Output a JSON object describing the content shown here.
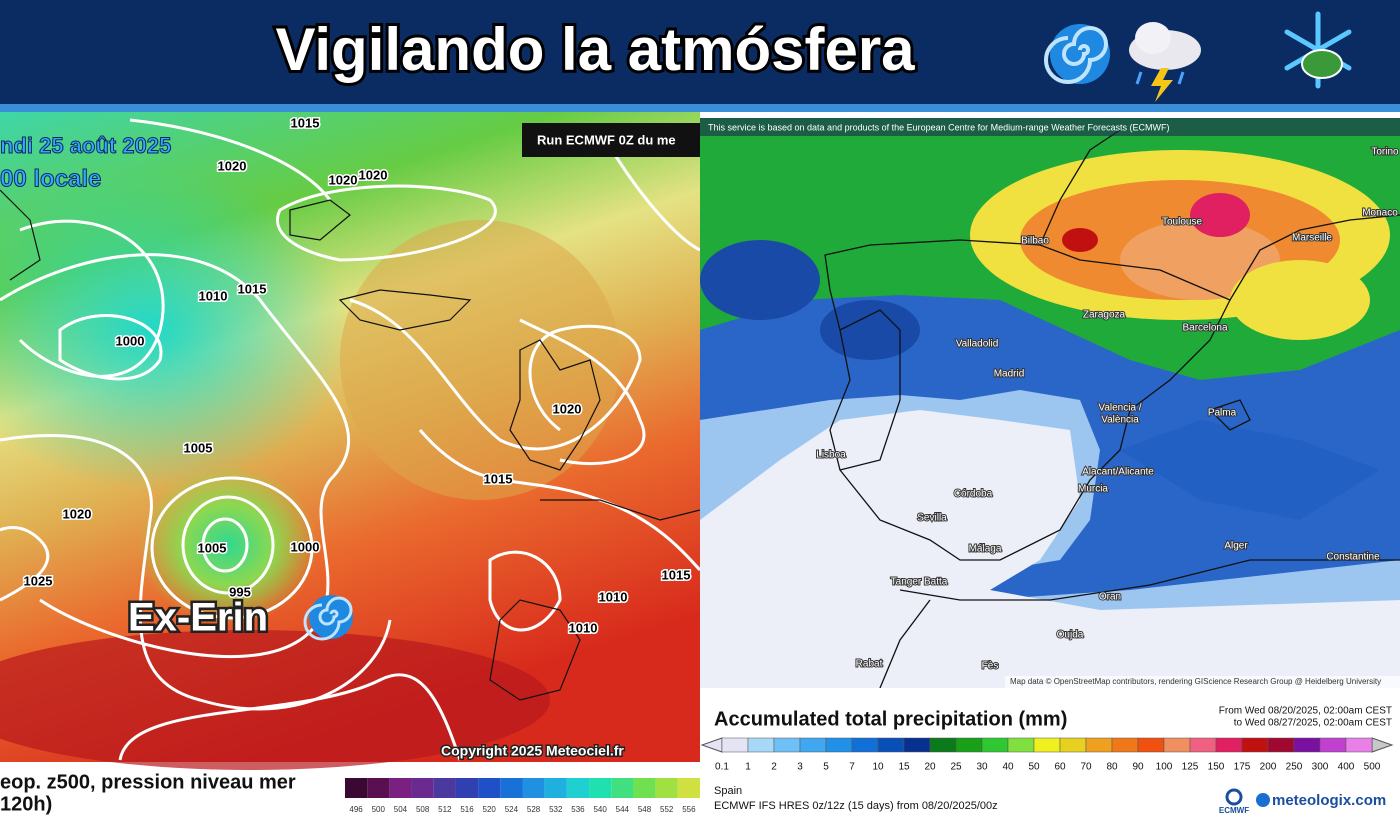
{
  "header": {
    "title": "Vigilando la atmósfera"
  },
  "left_map": {
    "date": "ndi 25 août 2025",
    "time": "00 locale",
    "run": "Run ECMWF 0Z du me",
    "isobar_labels": [
      "1015",
      "1020",
      "1020",
      "1020",
      "1010",
      "1015",
      "1000",
      "1020",
      "1005",
      "1015",
      "1020",
      "1000",
      "1005",
      "995",
      "1025",
      "1015",
      "1010",
      "1010"
    ],
    "storm_label": "Ex-Erin",
    "copyright": "Copyright 2025 Meteociel.fr",
    "caption": [
      "eop. z500, pression niveau mer",
      "120h)"
    ],
    "scale_labels": [
      "496",
      "500",
      "504",
      "508",
      "512",
      "516",
      "520",
      "524",
      "528",
      "532",
      "536",
      "540",
      "544",
      "548",
      "552",
      "556"
    ],
    "scale_colors": [
      "#3a0830",
      "#5a1050",
      "#7a2080",
      "#6a2a90",
      "#4a3aa0",
      "#3040b0",
      "#2050c8",
      "#1870d8",
      "#2090e0",
      "#20b0e0",
      "#20d0d0",
      "#20e0b0",
      "#40e080",
      "#70e050",
      "#a0e040",
      "#d0e040"
    ]
  },
  "right_map": {
    "attribution": "This service is based on data and products of the European Centre for Medium-range Weather Forecasts (ECMWF)",
    "cities": [
      "Bilbao",
      "Toulouse",
      "Marseille",
      "Torino",
      "Monaco",
      "Valladolid",
      "Zaragoza",
      "Barcelona",
      "Madrid",
      "Valencia /",
      "València",
      "Palma",
      "Lisboa",
      "Alacant/Alicante",
      "Murcia",
      "Córdoba",
      "Sevilla",
      "Málaga",
      "Alger",
      "Constantine",
      "Tanger Batta",
      "Oran",
      "Oujda",
      "Rabat",
      "Fès"
    ],
    "map_data": "Map data © OpenStreetMap contributors, rendering GIScience Research Group @ Heidelberg University",
    "legend": {
      "title": "Accumulated total precipitation (mm)",
      "from": "From Wed 08/20/2025, 02:00am CEST",
      "to": "to Wed 08/27/2025, 02:00am CEST",
      "ticks": [
        "0.1",
        "1",
        "2",
        "3",
        "5",
        "7",
        "10",
        "15",
        "20",
        "25",
        "30",
        "40",
        "50",
        "60",
        "70",
        "80",
        "90",
        "100",
        "125",
        "150",
        "175",
        "200",
        "250",
        "300",
        "400",
        "500"
      ],
      "colors": [
        "#e4e4f4",
        "#a8d8f8",
        "#70c0f8",
        "#40a8f0",
        "#2090e8",
        "#1070d8",
        "#0850b8",
        "#083090",
        "#0a7a1a",
        "#18a018",
        "#30c830",
        "#80e040",
        "#f0f020",
        "#e8d020",
        "#f0a020",
        "#f07818",
        "#f05010",
        "#f09060",
        "#f06080",
        "#e02060",
        "#c01010",
        "#a00830",
        "#7a10a0",
        "#c040d0",
        "#e880e8"
      ]
    },
    "region": "Spain",
    "model": "ECMWF IFS HRES 0z/12z (15 days) from 08/20/2025/00z",
    "logos": [
      "ECMWF",
      "meteologix.com"
    ]
  }
}
